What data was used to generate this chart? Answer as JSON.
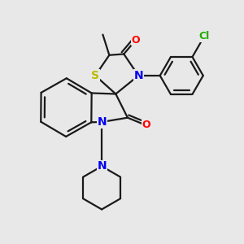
{
  "background_color": "#e8e8e8",
  "atom_colors": {
    "N": "#0000ee",
    "O": "#ff0000",
    "S": "#bbbb00",
    "Cl": "#22aa00",
    "C": "#1a1a1a"
  },
  "bond_color": "#1a1a1a",
  "bond_lw": 1.6,
  "figsize": [
    3.0,
    3.0
  ],
  "dpi": 100
}
